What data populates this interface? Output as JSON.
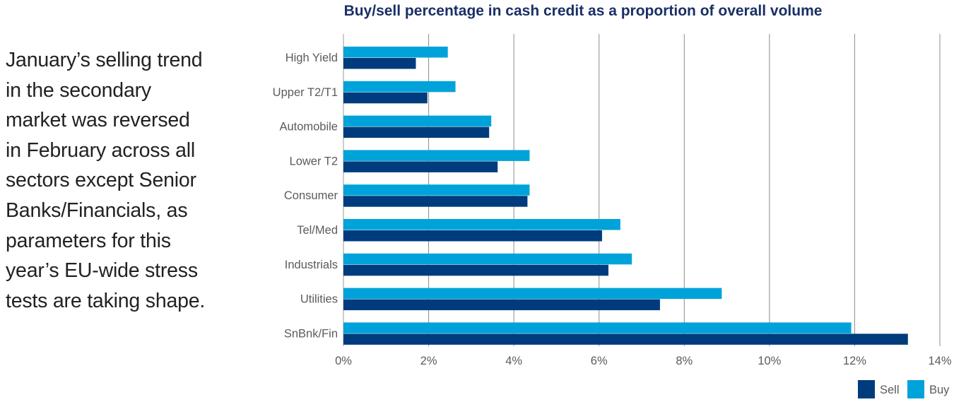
{
  "side_text": [
    "January’s selling trend",
    "in the secondary",
    "market was reversed",
    "in February across all",
    "sectors except Senior",
    "Banks/Financials, as",
    "parameters for this",
    "year’s EU-wide stress",
    "tests are taking shape."
  ],
  "chart_data": {
    "type": "bar",
    "orientation": "horizontal",
    "title": "Buy/sell percentage in cash credit as a proportion of overall volume",
    "xlabel": "",
    "ylabel": "",
    "categories": [
      "High Yield",
      "Upper T2/T1",
      "Automobile",
      "Lower T2",
      "Consumer",
      "Tel/Med",
      "Industrials",
      "Utilities",
      "SnBnk/Fin"
    ],
    "series": [
      {
        "name": "Buy",
        "color": "#00a3d9",
        "values": [
          2.45,
          2.63,
          3.47,
          4.37,
          4.37,
          6.5,
          6.77,
          8.88,
          11.92
        ]
      },
      {
        "name": "Sell",
        "color": "#003c7d",
        "values": [
          1.7,
          1.97,
          3.42,
          3.62,
          4.32,
          6.07,
          6.22,
          7.43,
          13.25
        ]
      }
    ],
    "xlim": [
      0,
      14
    ],
    "xticks": [
      0,
      2,
      4,
      6,
      8,
      10,
      12,
      14
    ],
    "tick_labels": [
      "0%",
      "2%",
      "4%",
      "6%",
      "8%",
      "10%",
      "12%",
      "14%"
    ],
    "grid": true,
    "legend": {
      "position": "bottom-right",
      "entries": [
        {
          "label": "Sell",
          "color": "#003c7d"
        },
        {
          "label": "Buy",
          "color": "#00a3d9"
        }
      ]
    }
  }
}
